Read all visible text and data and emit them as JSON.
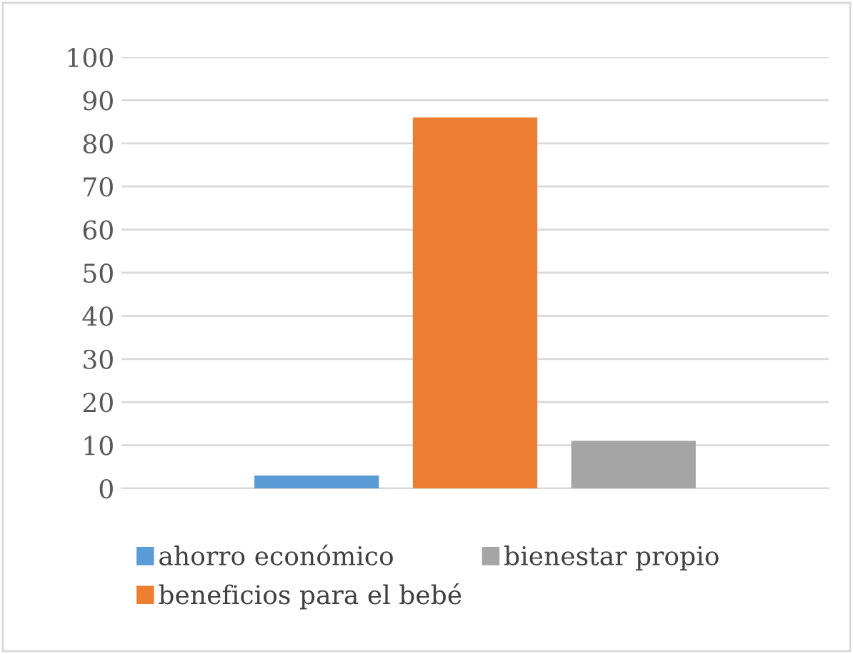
{
  "chart_data": {
    "type": "bar",
    "categories": [
      null
    ],
    "series": [
      {
        "name": "ahorro económico",
        "color": "#5b9bd5",
        "values": [
          3
        ]
      },
      {
        "name": "beneficios para el bebé",
        "color": "#ed7d31",
        "values": [
          86
        ]
      },
      {
        "name": "bienestar propio",
        "color": "#a5a5a5",
        "values": [
          11
        ]
      }
    ],
    "ylim": [
      0,
      100
    ],
    "yticks": [
      0,
      10,
      20,
      30,
      40,
      50,
      60,
      70,
      80,
      90,
      100
    ],
    "grid": "y",
    "legend": "bottom"
  }
}
